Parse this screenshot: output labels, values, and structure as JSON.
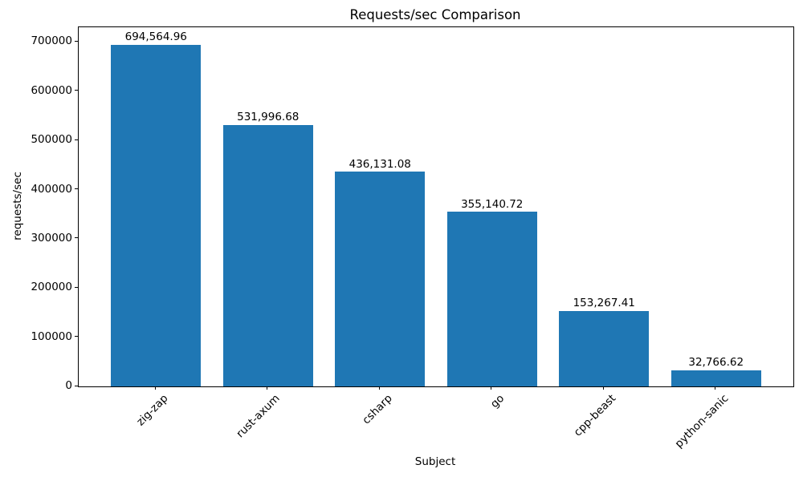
{
  "chart_data": {
    "type": "bar",
    "title": "Requests/sec Comparison",
    "xlabel": "Subject",
    "ylabel": "requests/sec",
    "categories": [
      "zig-zap",
      "rust-axum",
      "csharp",
      "go",
      "cpp-beast",
      "python-sanic"
    ],
    "values": [
      694564.96,
      531996.68,
      436131.08,
      355140.72,
      153267.41,
      32766.62
    ],
    "value_labels": [
      "694,564.96",
      "531,996.68",
      "436,131.08",
      "355,140.72",
      "153,267.41",
      "32,766.62"
    ],
    "y_ticks": [
      0,
      100000,
      200000,
      300000,
      400000,
      500000,
      600000,
      700000
    ],
    "y_tick_labels": [
      "0",
      "100000",
      "200000",
      "300000",
      "400000",
      "500000",
      "600000",
      "700000"
    ],
    "ylim": [
      0,
      730000
    ],
    "bar_color": "#1f77b4",
    "text_color": "#000000",
    "grid": false,
    "legend": null,
    "x_tick_rotation_deg": 45
  }
}
